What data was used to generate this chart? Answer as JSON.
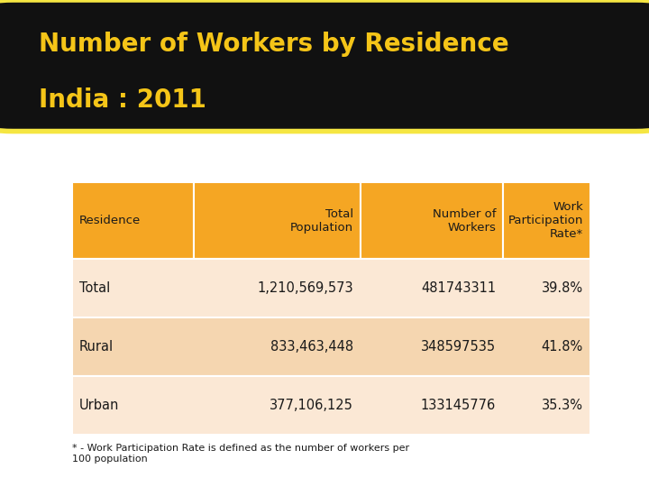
{
  "title_line1": "Number of Workers by Residence",
  "title_line2": "India : 2011",
  "title_bg_color": "#111111",
  "title_text_color": "#f5c518",
  "title_border_color": "#f5e642",
  "body_bg_color": "#ffffff",
  "body_border_color": "#4a0a0a",
  "table_header_bg": "#f5a623",
  "table_header_text": "#1a1a1a",
  "table_row_bg_odd": "#fbe8d5",
  "table_row_bg_even": "#f5d6b0",
  "table_text_color": "#1a1a1a",
  "col_headers": [
    "Residence",
    "Total\nPopulation",
    "Number of\nWorkers",
    "Work\nParticipation\nRate*"
  ],
  "rows": [
    [
      "Total",
      "1,210,569,573",
      "481743311",
      "39.8%"
    ],
    [
      "Rural",
      "833,463,448",
      "348597535",
      "41.8%"
    ],
    [
      "Urban",
      "377,106,125",
      "133145776",
      "35.3%"
    ]
  ],
  "footnote": "* - Work Participation Rate is defined as the number of workers per\n100 population"
}
